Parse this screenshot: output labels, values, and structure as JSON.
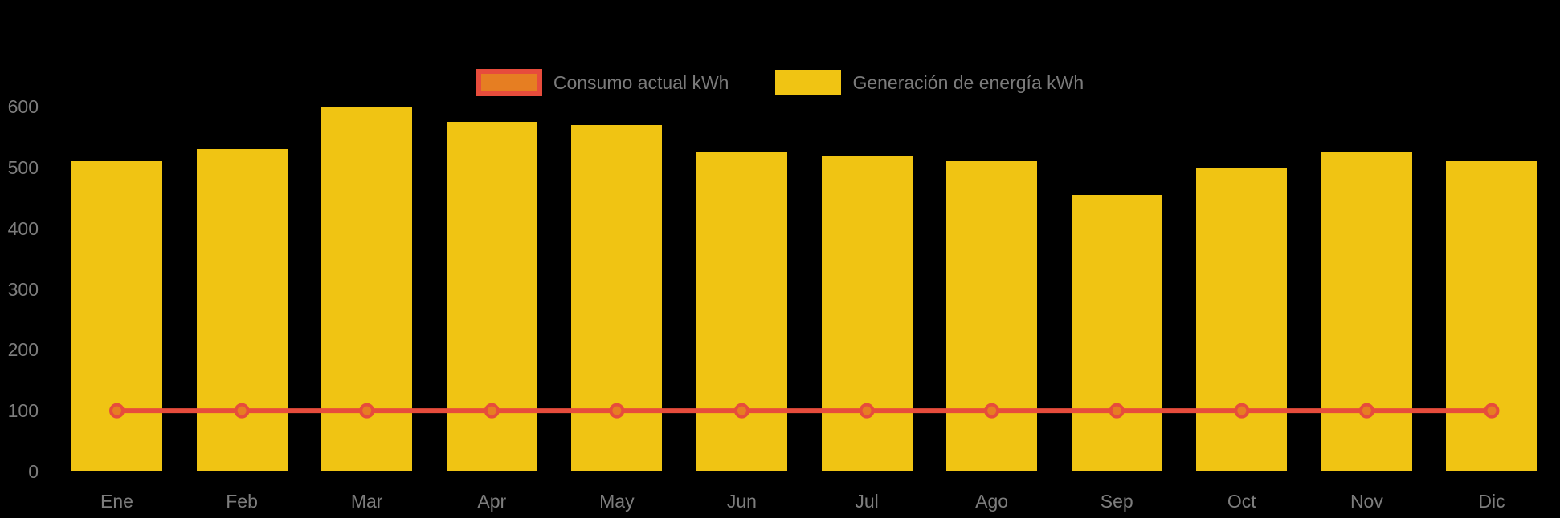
{
  "page": {
    "background": "#000000",
    "axis_text_color": "#7d7d7d",
    "legend_text_color": "#7b7b7b"
  },
  "legend": {
    "items": [
      {
        "label": "Consumo actual kWh",
        "swatch_fill": "#E67E22",
        "swatch_border": "#E74C3C"
      },
      {
        "label": "Generación de energía kWh",
        "swatch_fill": "#F0C413",
        "swatch_border": "#F0C413"
      }
    ]
  },
  "chart_data": {
    "type": "bar",
    "title": "",
    "xlabel": "",
    "ylabel": "",
    "categories": [
      "Ene",
      "Feb",
      "Mar",
      "Apr",
      "May",
      "Jun",
      "Jul",
      "Ago",
      "Sep",
      "Oct",
      "Nov",
      "Dic"
    ],
    "series": [
      {
        "name": "Consumo actual kWh",
        "type": "line",
        "color": "#E74C3C",
        "marker_fill": "#E67E22",
        "values": [
          100,
          100,
          100,
          100,
          100,
          100,
          100,
          100,
          100,
          100,
          100,
          100
        ]
      },
      {
        "name": "Generación de energía kWh",
        "type": "bar",
        "color": "#F0C413",
        "values": [
          510,
          530,
          600,
          575,
          570,
          525,
          520,
          510,
          455,
          500,
          525,
          510
        ]
      }
    ],
    "ylim": [
      0,
      600
    ],
    "yticks": [
      0,
      100,
      200,
      300,
      400,
      500,
      600
    ],
    "grid": false,
    "legend_position": "top-center",
    "background": "#000000"
  }
}
